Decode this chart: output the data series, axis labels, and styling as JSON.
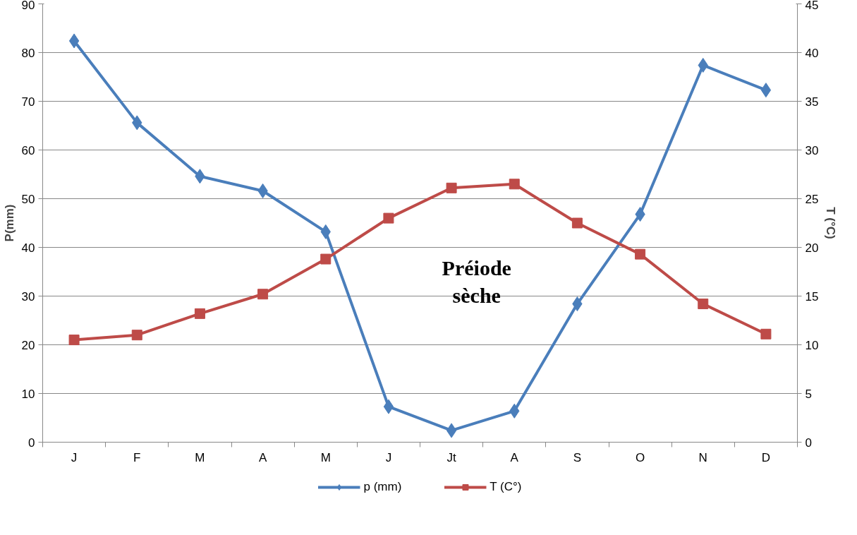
{
  "chart_data": {
    "type": "line",
    "categories": [
      "J",
      "F",
      "M",
      "A",
      "M",
      "J",
      "Jt",
      "A",
      "S",
      "O",
      "N",
      "D"
    ],
    "ylabel": "P(mm)",
    "y2label": "T (°C)",
    "ylim": [
      0,
      90
    ],
    "yticks": [
      0,
      10,
      20,
      30,
      40,
      50,
      60,
      70,
      80,
      90
    ],
    "y2lim": [
      0,
      45
    ],
    "y2ticks": [
      0,
      5,
      10,
      15,
      20,
      25,
      30,
      35,
      40,
      45
    ],
    "grid": "y",
    "legend": "bottom",
    "annotations": [
      "Préiode sèche"
    ],
    "series": [
      {
        "name": "p (mm)",
        "color": "#4a7ebb",
        "marker": "diamond",
        "values": [
          82.4,
          65.6,
          54.6,
          51.6,
          43.2,
          7.3,
          2.4,
          6.4,
          28.4,
          46.8,
          77.4,
          72.3
        ]
      },
      {
        "name": "T (C°)",
        "color": "#be4b48",
        "marker": "square",
        "axis": "y2",
        "values": [
          10.5,
          11.0,
          13.2,
          15.2,
          18.8,
          23.0,
          26.1,
          26.5,
          22.5,
          19.3,
          14.2,
          11.1
        ]
      }
    ]
  }
}
